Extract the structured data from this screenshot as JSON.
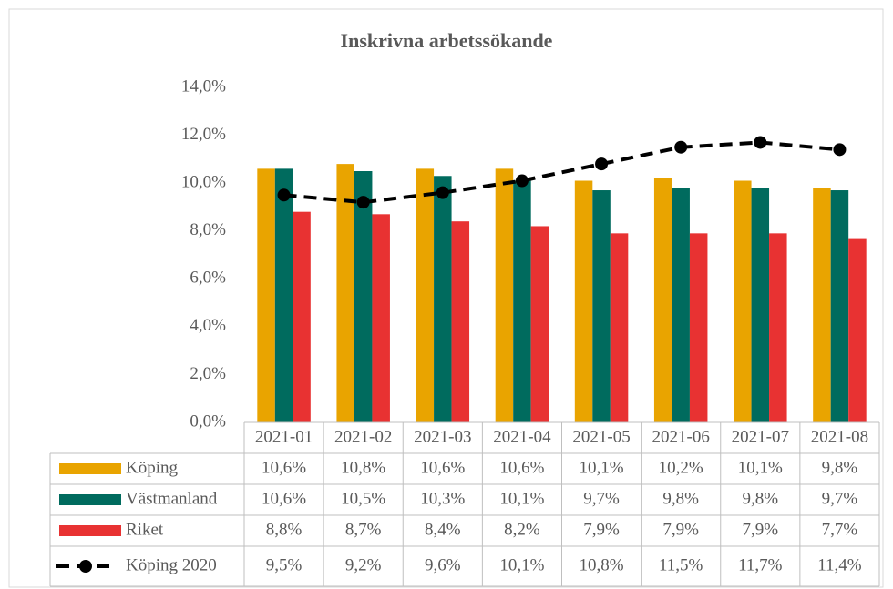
{
  "chart_data": {
    "type": "bar",
    "title": "Inskrivna arbetssökande",
    "categories": [
      "2021-01",
      "2021-02",
      "2021-03",
      "2021-04",
      "2021-05",
      "2021-06",
      "2021-07",
      "2021-08"
    ],
    "series": [
      {
        "name": "Köping",
        "color": "#e9a400",
        "values": [
          10.6,
          10.8,
          10.6,
          10.6,
          10.1,
          10.2,
          10.1,
          9.8
        ],
        "value_labels": [
          "10,6%",
          "10,8%",
          "10,6%",
          "10,6%",
          "10,1%",
          "10,2%",
          "10,1%",
          "9,8%"
        ]
      },
      {
        "name": "Västmanland",
        "color": "#006b5e",
        "values": [
          10.6,
          10.5,
          10.3,
          10.1,
          9.7,
          9.8,
          9.8,
          9.7
        ],
        "value_labels": [
          "10,6%",
          "10,5%",
          "10,3%",
          "10,1%",
          "9,7%",
          "9,8%",
          "9,8%",
          "9,7%"
        ]
      },
      {
        "name": "Riket",
        "color": "#e83232",
        "values": [
          8.8,
          8.7,
          8.4,
          8.2,
          7.9,
          7.9,
          7.9,
          7.7
        ],
        "value_labels": [
          "8,8%",
          "8,7%",
          "8,4%",
          "8,2%",
          "7,9%",
          "7,9%",
          "7,9%",
          "7,7%"
        ]
      },
      {
        "name": "Köping 2020",
        "type": "line",
        "color": "#000000",
        "values": [
          9.5,
          9.2,
          9.6,
          10.1,
          10.8,
          11.5,
          11.7,
          11.4
        ],
        "value_labels": [
          "9,5%",
          "9,2%",
          "9,6%",
          "10,1%",
          "10,8%",
          "11,5%",
          "11,7%",
          "11,4%"
        ]
      }
    ],
    "ylim": [
      0,
      14
    ],
    "yticks": [
      {
        "value": 0,
        "label": "0,0%"
      },
      {
        "value": 2,
        "label": "2,0%"
      },
      {
        "value": 4,
        "label": "4,0%"
      },
      {
        "value": 6,
        "label": "6,0%"
      },
      {
        "value": 8,
        "label": "8,0%"
      },
      {
        "value": 10,
        "label": "10,0%"
      },
      {
        "value": 12,
        "label": "12,0%"
      },
      {
        "value": 14,
        "label": "14,0%"
      }
    ],
    "grid": false
  }
}
